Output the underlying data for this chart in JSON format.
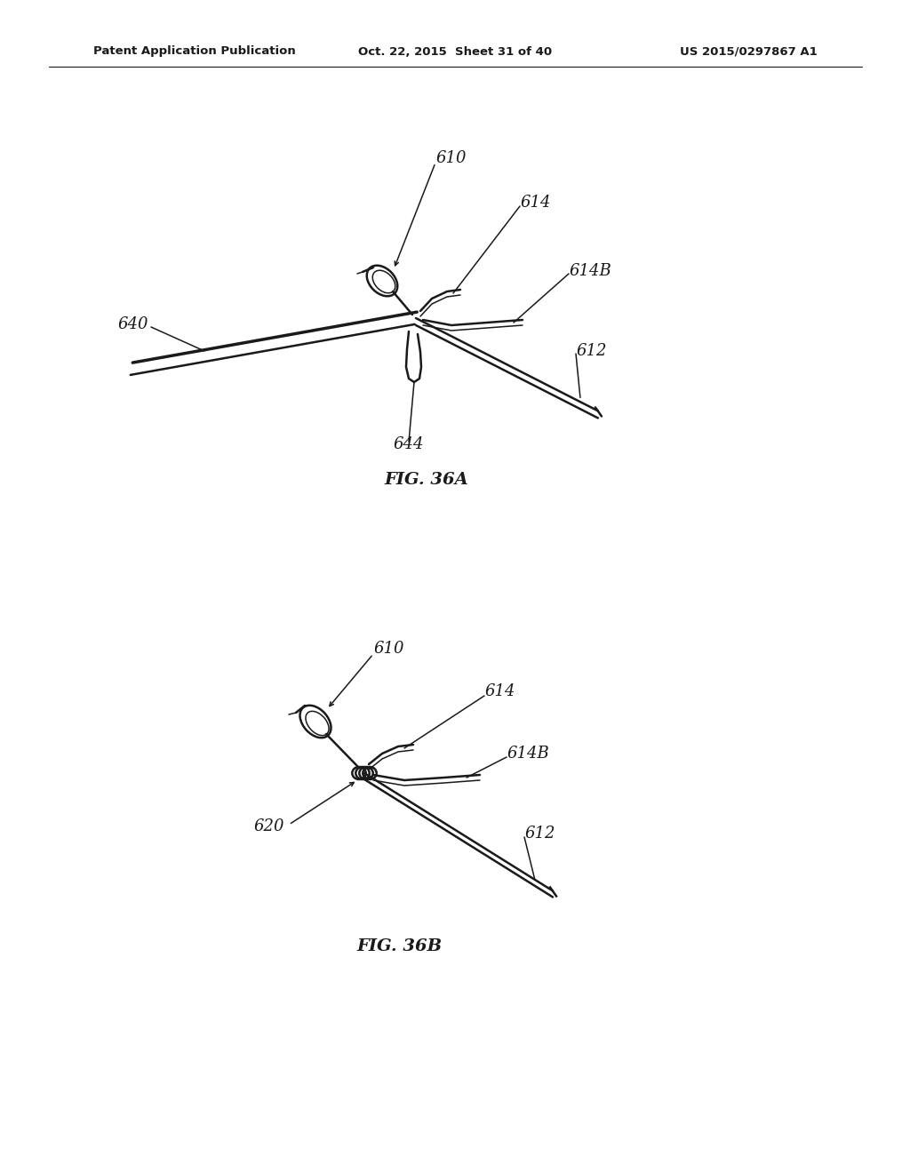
{
  "bg_color": "#ffffff",
  "line_color": "#1a1a1a",
  "header_left": "Patent Application Publication",
  "header_mid": "Oct. 22, 2015  Sheet 31 of 40",
  "header_right": "US 2015/0297867 A1",
  "fig_label_a": "FIG. 36A",
  "fig_label_b": "FIG. 36B",
  "page_width": 10.24,
  "page_height": 13.2
}
